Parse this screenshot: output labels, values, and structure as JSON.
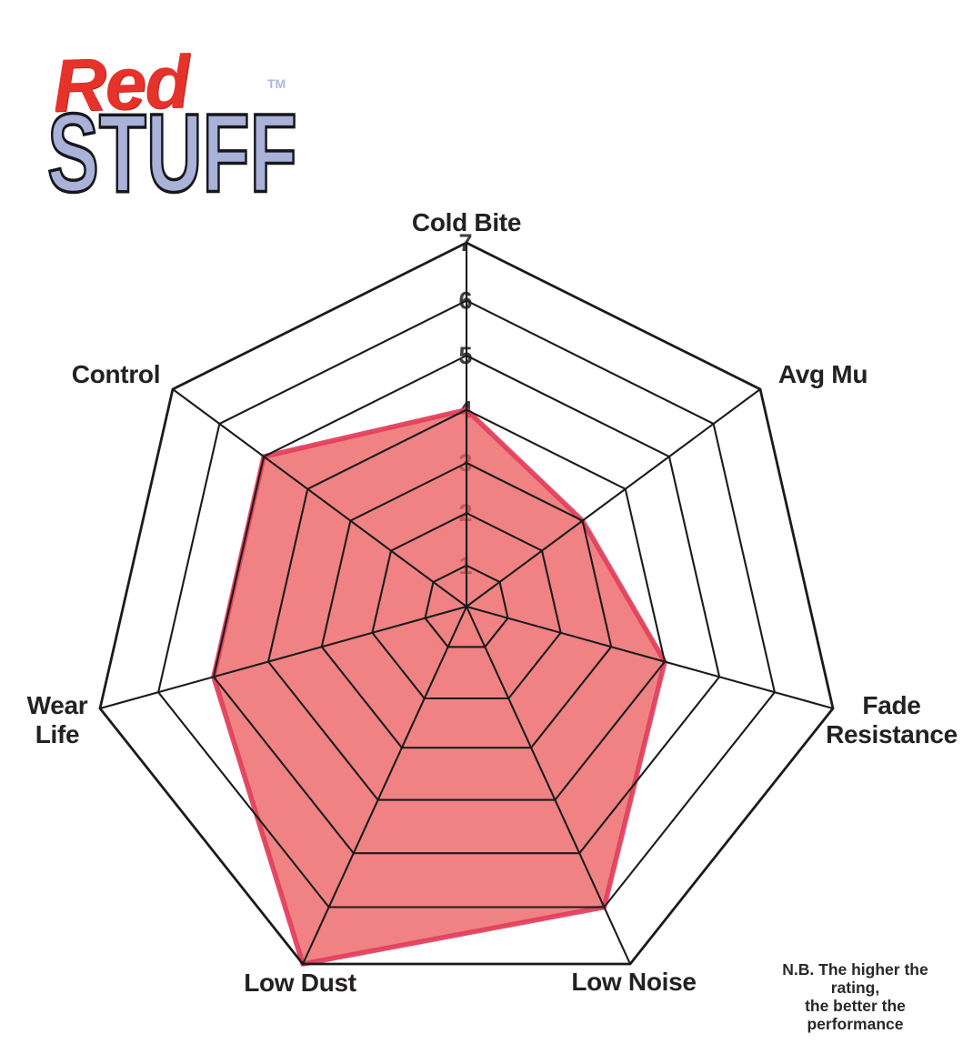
{
  "logo": {
    "word_top": "Red",
    "word_bottom": "STUFF",
    "trademark": "TM",
    "red_color": "#e5332b",
    "lavender_color": "#a9b2d8"
  },
  "chart_data": {
    "type": "radar",
    "categories": [
      "Cold Bite",
      "Avg Mu",
      "Fade Resistance",
      "Low Noise",
      "Low Dust",
      "Wear Life",
      "Control"
    ],
    "series": [
      {
        "values": [
          4,
          3,
          4,
          6,
          7,
          5,
          5
        ],
        "fill_color": "#ec5f62",
        "fill_opacity": 0.78,
        "stroke_color": "#e23e5a",
        "stroke_width": 5.5
      }
    ],
    "scale": {
      "min": 0,
      "max": 7,
      "tick_labels": [
        "1",
        "2",
        "3",
        "4",
        "5",
        "6",
        "7"
      ]
    },
    "grid_color": "#1b1b1b",
    "tick_color": "#3f3e40",
    "label_color": "#242122",
    "legend_position": "none",
    "annotation": {
      "line1": "N.B. The higher the rating,",
      "line2": "the better the performance"
    }
  }
}
